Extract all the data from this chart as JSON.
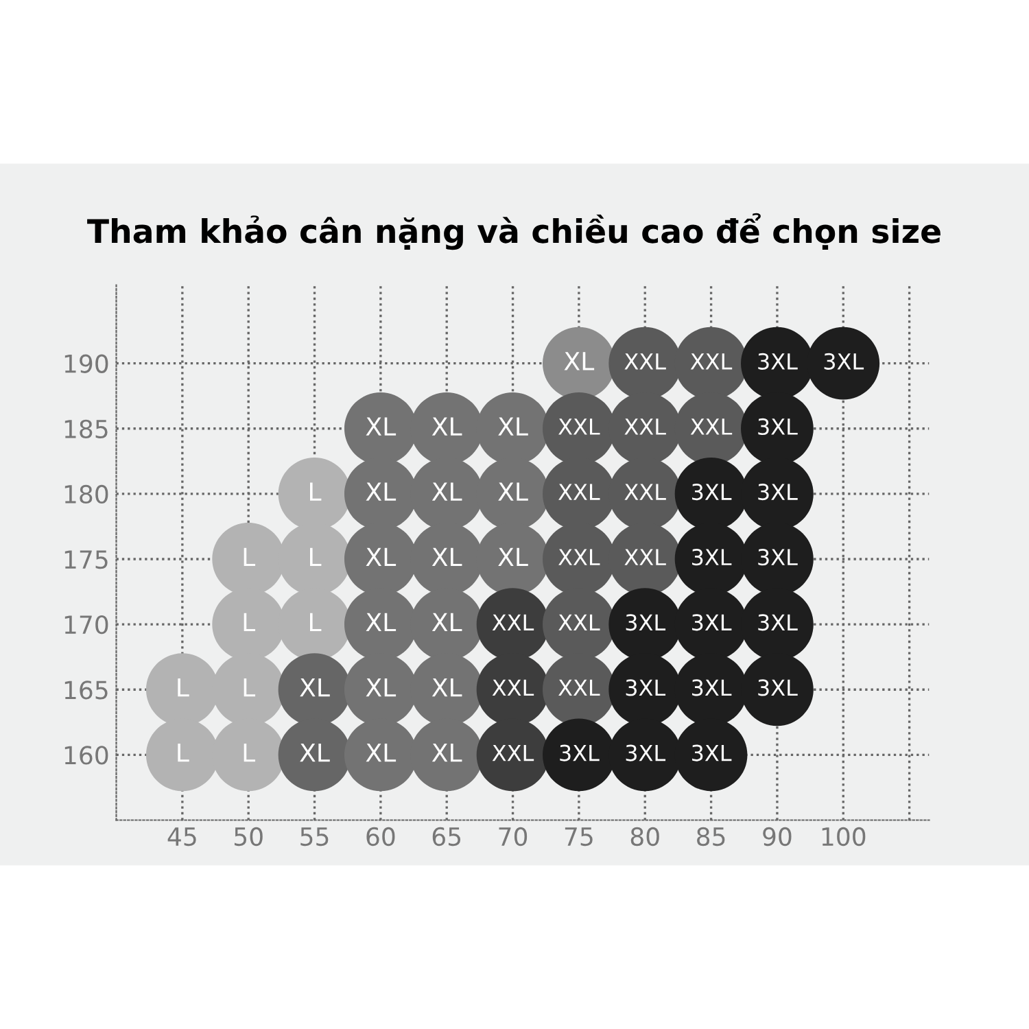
{
  "chart_data": {
    "type": "scatter",
    "title": "Tham khảo cân nặng và chiều cao để chọn size",
    "categories": [
      "45",
      "50",
      "55",
      "60",
      "65",
      "70",
      "75",
      "80",
      "85",
      "90",
      "100",
      null
    ],
    "ylim": [
      155,
      196
    ],
    "yticks": [
      160,
      165,
      170,
      175,
      180,
      185,
      190
    ],
    "grid": true,
    "legend": false,
    "marker": "circle",
    "series": [
      {
        "name": "L",
        "color": "#b3b3b3",
        "x": [
          "45",
          "45",
          "50",
          "50",
          "50",
          "50",
          "55",
          "55",
          "55"
        ],
        "values": [
          165,
          160,
          175,
          170,
          165,
          160,
          180,
          175,
          170
        ]
      },
      {
        "name": "XL",
        "color": "#737373",
        "colors": [
          "#666666",
          "#666666",
          "#737373",
          "#737373",
          "#737373",
          "#737373",
          "#737373",
          "#737373",
          "#737373",
          "#737373",
          "#737373",
          "#737373",
          "#737373",
          "#737373",
          "#737373",
          "#737373",
          "#737373",
          "#8c8c8c"
        ],
        "x": [
          "55",
          "55",
          "60",
          "60",
          "60",
          "60",
          "60",
          "60",
          "65",
          "65",
          "65",
          "65",
          "65",
          "65",
          "70",
          "70",
          "70",
          "75"
        ],
        "values": [
          165,
          160,
          185,
          180,
          175,
          170,
          165,
          160,
          185,
          180,
          175,
          170,
          165,
          160,
          185,
          180,
          175,
          190
        ]
      },
      {
        "name": "XXL",
        "color": "#5a5a5a",
        "colors": [
          "#3d3d3d",
          "#3d3d3d",
          "#3d3d3d",
          "#5a5a5a",
          "#5a5a5a",
          "#5a5a5a",
          "#5a5a5a",
          "#5a5a5a",
          "#5a5a5a",
          "#5a5a5a",
          "#5a5a5a",
          "#5a5a5a",
          "#5a5a5a",
          "#5a5a5a"
        ],
        "x": [
          "70",
          "70",
          "70",
          "75",
          "75",
          "75",
          "75",
          "75",
          "80",
          "80",
          "80",
          "80",
          "85",
          "85"
        ],
        "values": [
          170,
          165,
          160,
          185,
          180,
          175,
          170,
          165,
          190,
          185,
          180,
          175,
          190,
          185
        ]
      },
      {
        "name": "3XL",
        "color": "#1e1e1e",
        "x": [
          "75",
          "80",
          "80",
          "80",
          "85",
          "85",
          "85",
          "85",
          "85",
          "90",
          "90",
          "90",
          "90",
          "90",
          "90",
          "100"
        ],
        "values": [
          160,
          170,
          165,
          160,
          180,
          175,
          170,
          165,
          160,
          190,
          185,
          180,
          175,
          170,
          165,
          190
        ]
      }
    ]
  }
}
